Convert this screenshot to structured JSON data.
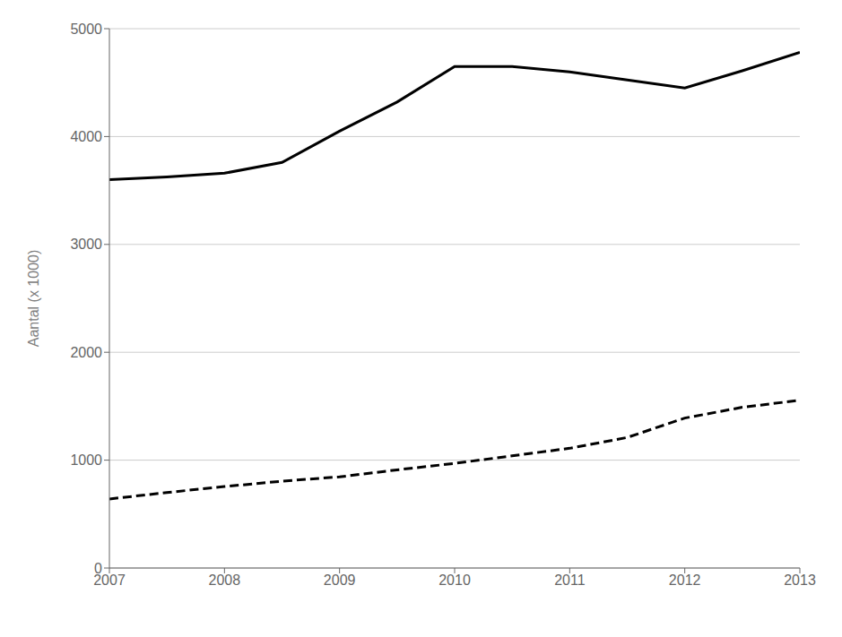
{
  "chart_data": {
    "type": "line",
    "ylabel": "Aantal (x 1000)",
    "x": [
      2007,
      2007.5,
      2008,
      2008.5,
      2009,
      2009.5,
      2010,
      2010.5,
      2011,
      2011.5,
      2012,
      2012.5,
      2013
    ],
    "series": [
      {
        "color": "#000000",
        "line_style": "solid",
        "values": [
          3600,
          3625,
          3660,
          3760,
          4050,
          4320,
          4650,
          4650,
          4600,
          4525,
          4450,
          4610,
          4780
        ]
      },
      {
        "color": "#000000",
        "line_style": "dashed",
        "values": [
          640,
          700,
          755,
          805,
          845,
          910,
          970,
          1040,
          1110,
          1210,
          1390,
          1490,
          1555
        ]
      }
    ],
    "xlim": [
      2007,
      2013
    ],
    "xticks": [
      2007,
      2008,
      2009,
      2010,
      2011,
      2012,
      2013
    ],
    "ylim": [
      0,
      5000
    ],
    "yticks": [
      0,
      1000,
      2000,
      3000,
      4000,
      5000
    ],
    "grid": "y"
  }
}
